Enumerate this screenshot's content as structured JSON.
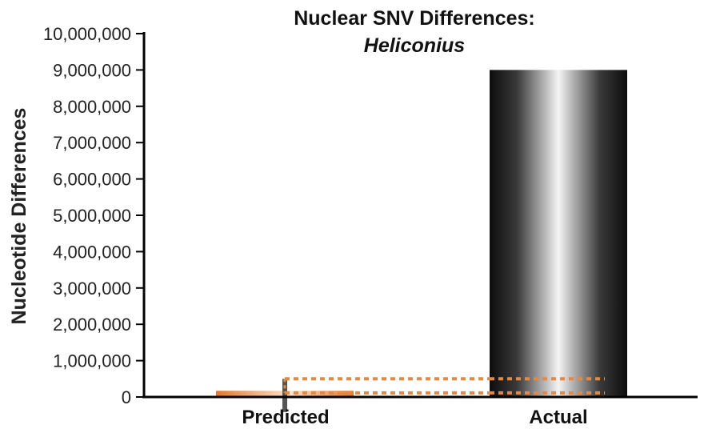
{
  "chart_data": {
    "type": "bar",
    "title": "Nuclear SNV Differences:",
    "subtitle": "Heliconius",
    "xlabel": "",
    "ylabel": "Nucleotide Differences",
    "ylim": [
      0,
      10000000
    ],
    "yticks": [
      0,
      1000000,
      2000000,
      3000000,
      4000000,
      5000000,
      6000000,
      7000000,
      8000000,
      9000000,
      10000000
    ],
    "ytick_labels": [
      "0",
      "1,000,000",
      "2,000,000",
      "3,000,000",
      "4,000,000",
      "5,000,000",
      "6,000,000",
      "7,000,000",
      "8,000,000",
      "9,000,000",
      "10,000,000"
    ],
    "categories": [
      "Predicted",
      "Actual"
    ],
    "values": [
      170000,
      9000000
    ],
    "predicted_range": [
      70000,
      500000
    ],
    "grid": false,
    "colors": {
      "predicted": "#e8883e",
      "actual_dark": "#111111",
      "actual_light": "#f2f2f2",
      "range_lines": "#e8883e",
      "error_bar": "#555555",
      "axis": "#000000"
    }
  }
}
